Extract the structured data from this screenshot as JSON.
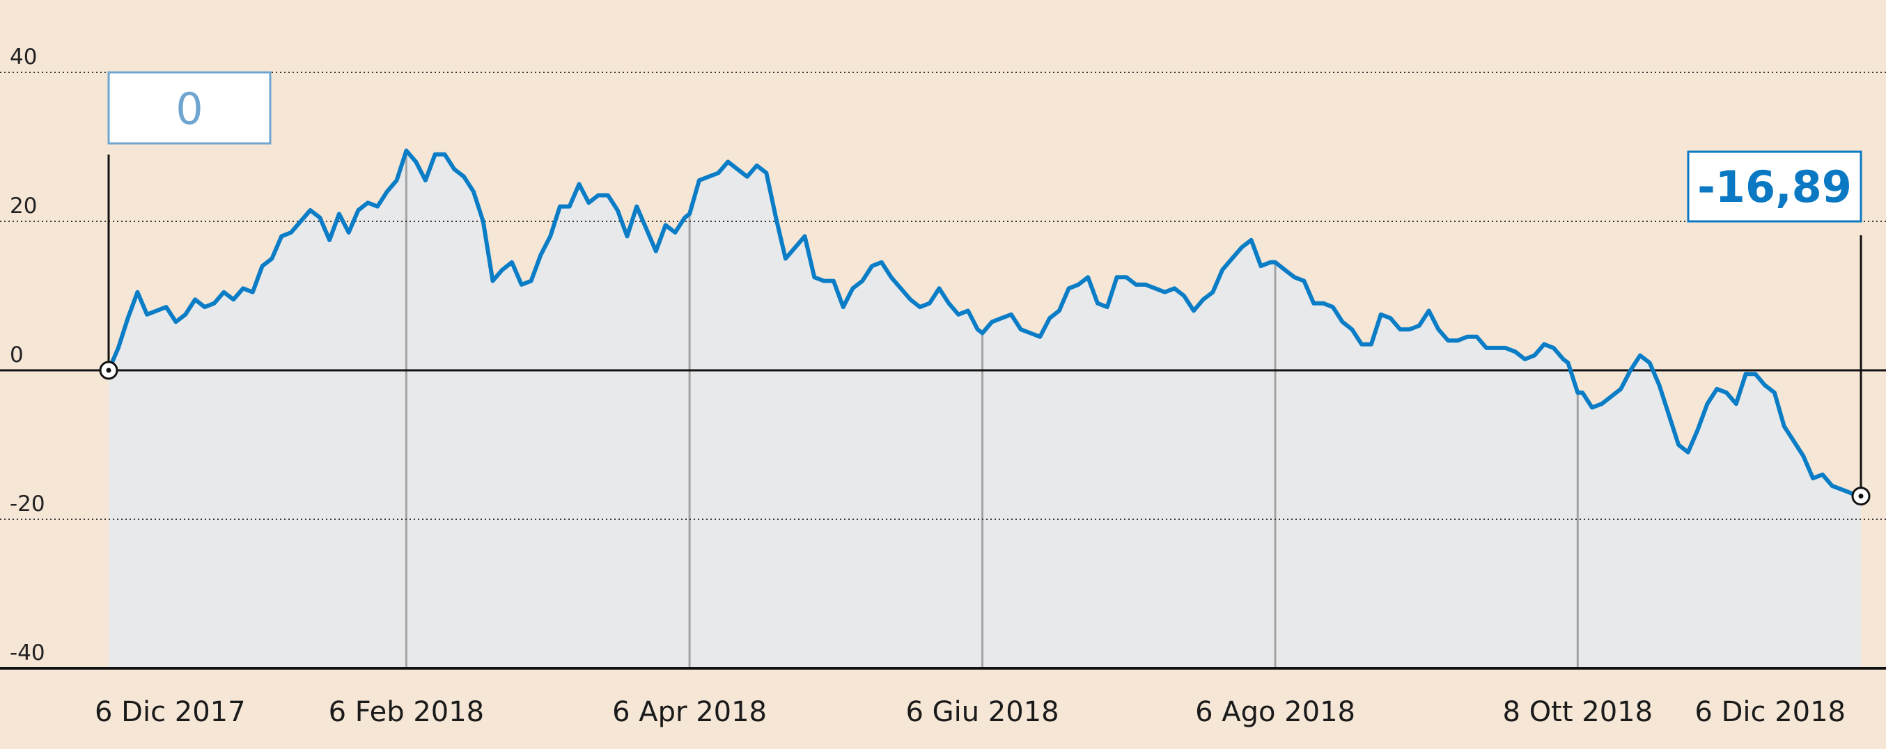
{
  "colors": {
    "background": "#f5e6d6",
    "area_fill": "#e8e9ea",
    "line": "#0a7dc6",
    "axis": "#111111",
    "grid": "#333333",
    "vline": "#a3a3a3",
    "callout_start_border": "#6fa5cf",
    "callout_end_border": "#0a78c2"
  },
  "chart_data": {
    "type": "area",
    "title": "",
    "xlabel": "",
    "ylabel": "",
    "ylim": [
      -40,
      40
    ],
    "yticks": [
      40,
      20,
      0,
      -20,
      -40
    ],
    "ytick_labels": [
      "40",
      "20",
      "0",
      "-20",
      "-40"
    ],
    "grid": "horizontal dotted",
    "xlim": [
      "2017-12-06",
      "2018-12-06"
    ],
    "xtick_labels": [
      {
        "date": "2017-12-06",
        "label": "6 Dic 2017"
      },
      {
        "date": "2018-02-06",
        "label": "6 Feb 2018"
      },
      {
        "date": "2018-04-06",
        "label": "6 Apr 2018"
      },
      {
        "date": "2018-06-06",
        "label": "6 Giu 2018"
      },
      {
        "date": "2018-08-06",
        "label": "6 Ago 2018"
      },
      {
        "date": "2018-10-08",
        "label": "8 Ott 2018"
      },
      {
        "date": "2018-12-06",
        "label": "6 Dic 2018"
      }
    ],
    "series": [
      {
        "name": "",
        "points": [
          [
            "2017-12-06",
            0
          ],
          [
            "2017-12-08",
            3
          ],
          [
            "2017-12-10",
            7
          ],
          [
            "2017-12-12",
            10.5
          ],
          [
            "2017-12-14",
            7.5
          ],
          [
            "2017-12-16",
            8
          ],
          [
            "2017-12-18",
            8.5
          ],
          [
            "2017-12-20",
            6.5
          ],
          [
            "2017-12-22",
            7.5
          ],
          [
            "2017-12-24",
            9.5
          ],
          [
            "2017-12-26",
            8.5
          ],
          [
            "2017-12-28",
            9
          ],
          [
            "2017-12-30",
            10.5
          ],
          [
            "2018-01-01",
            9.5
          ],
          [
            "2018-01-03",
            11
          ],
          [
            "2018-01-05",
            10.5
          ],
          [
            "2018-01-07",
            14
          ],
          [
            "2018-01-09",
            15
          ],
          [
            "2018-01-11",
            18
          ],
          [
            "2018-01-13",
            18.5
          ],
          [
            "2018-01-15",
            20
          ],
          [
            "2018-01-17",
            21.5
          ],
          [
            "2018-01-19",
            20.5
          ],
          [
            "2018-01-21",
            17.5
          ],
          [
            "2018-01-23",
            21
          ],
          [
            "2018-01-25",
            18.5
          ],
          [
            "2018-01-27",
            21.5
          ],
          [
            "2018-01-29",
            22.5
          ],
          [
            "2018-01-31",
            22
          ],
          [
            "2018-02-02",
            24
          ],
          [
            "2018-02-04",
            25.5
          ],
          [
            "2018-02-06",
            29.5
          ],
          [
            "2018-02-08",
            28
          ],
          [
            "2018-02-10",
            25.5
          ],
          [
            "2018-02-12",
            29
          ],
          [
            "2018-02-14",
            29
          ],
          [
            "2018-02-16",
            27
          ],
          [
            "2018-02-18",
            26
          ],
          [
            "2018-02-20",
            24
          ],
          [
            "2018-02-22",
            20
          ],
          [
            "2018-02-24",
            12
          ],
          [
            "2018-02-26",
            13.5
          ],
          [
            "2018-02-28",
            14.5
          ],
          [
            "2018-03-02",
            11.5
          ],
          [
            "2018-03-04",
            12
          ],
          [
            "2018-03-06",
            15.5
          ],
          [
            "2018-03-08",
            18
          ],
          [
            "2018-03-10",
            22
          ],
          [
            "2018-03-12",
            22
          ],
          [
            "2018-03-14",
            25
          ],
          [
            "2018-03-16",
            22.5
          ],
          [
            "2018-03-18",
            23.5
          ],
          [
            "2018-03-20",
            23.5
          ],
          [
            "2018-03-22",
            21.5
          ],
          [
            "2018-03-24",
            18
          ],
          [
            "2018-03-26",
            22
          ],
          [
            "2018-03-28",
            19
          ],
          [
            "2018-03-30",
            16
          ],
          [
            "2018-04-01",
            19.5
          ],
          [
            "2018-04-03",
            18.5
          ],
          [
            "2018-04-05",
            20.5
          ],
          [
            "2018-04-06",
            21
          ],
          [
            "2018-04-08",
            25.5
          ],
          [
            "2018-04-10",
            26
          ],
          [
            "2018-04-12",
            26.5
          ],
          [
            "2018-04-14",
            28
          ],
          [
            "2018-04-16",
            27
          ],
          [
            "2018-04-18",
            26
          ],
          [
            "2018-04-20",
            27.5
          ],
          [
            "2018-04-22",
            26.5
          ],
          [
            "2018-04-24",
            20.5
          ],
          [
            "2018-04-26",
            15
          ],
          [
            "2018-04-28",
            16.5
          ],
          [
            "2018-04-30",
            18
          ],
          [
            "2018-05-02",
            12.5
          ],
          [
            "2018-05-04",
            12
          ],
          [
            "2018-05-06",
            12
          ],
          [
            "2018-05-08",
            8.5
          ],
          [
            "2018-05-10",
            11
          ],
          [
            "2018-05-12",
            12
          ],
          [
            "2018-05-14",
            14
          ],
          [
            "2018-05-16",
            14.5
          ],
          [
            "2018-05-18",
            12.5
          ],
          [
            "2018-05-20",
            11
          ],
          [
            "2018-05-22",
            9.5
          ],
          [
            "2018-05-24",
            8.5
          ],
          [
            "2018-05-26",
            9
          ],
          [
            "2018-05-28",
            11
          ],
          [
            "2018-05-30",
            9
          ],
          [
            "2018-06-01",
            7.5
          ],
          [
            "2018-06-03",
            8
          ],
          [
            "2018-06-05",
            5.5
          ],
          [
            "2018-06-06",
            5
          ],
          [
            "2018-06-08",
            6.5
          ],
          [
            "2018-06-10",
            7
          ],
          [
            "2018-06-12",
            7.5
          ],
          [
            "2018-06-14",
            5.5
          ],
          [
            "2018-06-16",
            5
          ],
          [
            "2018-06-18",
            4.5
          ],
          [
            "2018-06-20",
            7
          ],
          [
            "2018-06-22",
            8
          ],
          [
            "2018-06-24",
            11
          ],
          [
            "2018-06-26",
            11.5
          ],
          [
            "2018-06-28",
            12.5
          ],
          [
            "2018-06-30",
            9
          ],
          [
            "2018-07-02",
            8.5
          ],
          [
            "2018-07-04",
            12.5
          ],
          [
            "2018-07-06",
            12.5
          ],
          [
            "2018-07-08",
            11.5
          ],
          [
            "2018-07-10",
            11.5
          ],
          [
            "2018-07-12",
            11
          ],
          [
            "2018-07-14",
            10.5
          ],
          [
            "2018-07-16",
            11
          ],
          [
            "2018-07-18",
            10
          ],
          [
            "2018-07-20",
            8
          ],
          [
            "2018-07-22",
            9.5
          ],
          [
            "2018-07-24",
            10.5
          ],
          [
            "2018-07-26",
            13.5
          ],
          [
            "2018-07-28",
            15
          ],
          [
            "2018-07-30",
            16.5
          ],
          [
            "2018-08-01",
            17.5
          ],
          [
            "2018-08-03",
            14
          ],
          [
            "2018-08-05",
            14.5
          ],
          [
            "2018-08-06",
            14.5
          ],
          [
            "2018-08-08",
            13.5
          ],
          [
            "2018-08-10",
            12.5
          ],
          [
            "2018-08-12",
            12
          ],
          [
            "2018-08-14",
            9
          ],
          [
            "2018-08-16",
            9
          ],
          [
            "2018-08-18",
            8.5
          ],
          [
            "2018-08-20",
            6.5
          ],
          [
            "2018-08-22",
            5.5
          ],
          [
            "2018-08-24",
            3.5
          ],
          [
            "2018-08-26",
            3.5
          ],
          [
            "2018-08-28",
            7.5
          ],
          [
            "2018-08-30",
            7
          ],
          [
            "2018-09-01",
            5.5
          ],
          [
            "2018-09-03",
            5.5
          ],
          [
            "2018-09-05",
            6
          ],
          [
            "2018-09-07",
            8
          ],
          [
            "2018-09-09",
            5.5
          ],
          [
            "2018-09-11",
            4
          ],
          [
            "2018-09-13",
            4
          ],
          [
            "2018-09-15",
            4.5
          ],
          [
            "2018-09-17",
            4.5
          ],
          [
            "2018-09-19",
            3
          ],
          [
            "2018-09-21",
            3
          ],
          [
            "2018-09-23",
            3
          ],
          [
            "2018-09-25",
            2.5
          ],
          [
            "2018-09-27",
            1.5
          ],
          [
            "2018-09-29",
            2
          ],
          [
            "2018-10-01",
            3.5
          ],
          [
            "2018-10-03",
            3
          ],
          [
            "2018-10-05",
            1.5
          ],
          [
            "2018-10-06",
            1
          ],
          [
            "2018-10-08",
            -3
          ],
          [
            "2018-10-09",
            -3
          ],
          [
            "2018-10-11",
            -5
          ],
          [
            "2018-10-13",
            -4.5
          ],
          [
            "2018-10-15",
            -3.5
          ],
          [
            "2018-10-17",
            -2.5
          ],
          [
            "2018-10-19",
            0
          ],
          [
            "2018-10-21",
            2
          ],
          [
            "2018-10-23",
            1
          ],
          [
            "2018-10-25",
            -2
          ],
          [
            "2018-10-27",
            -6
          ],
          [
            "2018-10-29",
            -10
          ],
          [
            "2018-10-31",
            -11
          ],
          [
            "2018-11-02",
            -8
          ],
          [
            "2018-11-04",
            -4.5
          ],
          [
            "2018-11-06",
            -2.5
          ],
          [
            "2018-11-08",
            -3
          ],
          [
            "2018-11-10",
            -4.5
          ],
          [
            "2018-11-12",
            -0.5
          ],
          [
            "2018-11-14",
            -0.5
          ],
          [
            "2018-11-16",
            -2
          ],
          [
            "2018-11-18",
            -3
          ],
          [
            "2018-11-20",
            -7.5
          ],
          [
            "2018-11-22",
            -9.5
          ],
          [
            "2018-11-24",
            -11.5
          ],
          [
            "2018-11-26",
            -14.5
          ],
          [
            "2018-11-28",
            -14
          ],
          [
            "2018-11-30",
            -15.5
          ],
          [
            "2018-12-02",
            -16
          ],
          [
            "2018-12-04",
            -16.5
          ],
          [
            "2018-12-06",
            -16.89
          ]
        ]
      }
    ],
    "annotations": [
      {
        "date": "2017-12-06",
        "value": 0,
        "label": "0"
      },
      {
        "date": "2018-12-06",
        "value": -16.89,
        "label": "-16,89"
      }
    ]
  }
}
